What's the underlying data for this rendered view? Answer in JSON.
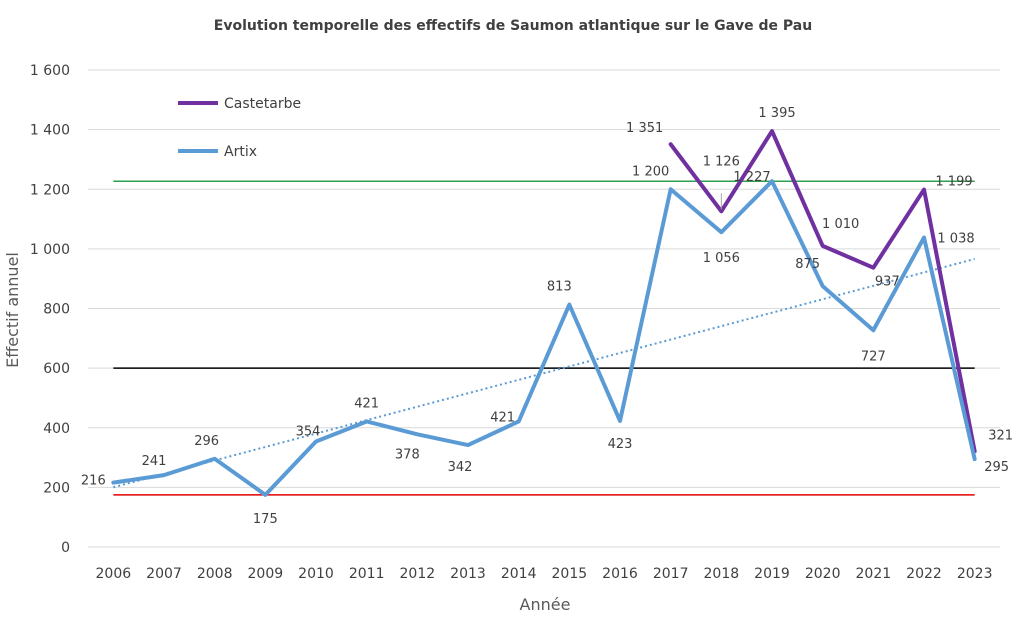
{
  "chart_data": {
    "type": "line",
    "title": "Evolution temporelle des effectifs de Saumon atlantique sur le Gave de Pau",
    "xlabel": "Année",
    "ylabel": "Effectif annuel",
    "ylim": [
      0,
      1600
    ],
    "yticks": [
      0,
      200,
      400,
      600,
      800,
      1000,
      1200,
      1400,
      1600
    ],
    "ytick_labels": [
      "0",
      "200",
      "400",
      "600",
      "800",
      "1 000",
      "1 200",
      "1 400",
      "1 600"
    ],
    "grid": true,
    "legend_position": "top-left",
    "categories": [
      "2006",
      "2007",
      "2008",
      "2009",
      "2010",
      "2011",
      "2012",
      "2013",
      "2014",
      "2015",
      "2016",
      "2017",
      "2018",
      "2019",
      "2020",
      "2021",
      "2022",
      "2023"
    ],
    "series": [
      {
        "name": "Castetarbe",
        "color": "#7030A0",
        "values": [
          null,
          null,
          null,
          null,
          null,
          null,
          null,
          null,
          null,
          null,
          null,
          1351,
          1126,
          1395,
          1010,
          937,
          1199,
          321
        ],
        "labels": [
          null,
          null,
          null,
          null,
          null,
          null,
          null,
          null,
          null,
          null,
          null,
          "1 351",
          "1 126",
          "1 395",
          "1 010",
          "937",
          "1 199",
          "321"
        ]
      },
      {
        "name": "Artix",
        "color": "#5B9BD5",
        "values": [
          216,
          241,
          296,
          175,
          354,
          421,
          378,
          342,
          421,
          813,
          423,
          1200,
          1056,
          1227,
          875,
          727,
          1038,
          295
        ],
        "labels": [
          "216",
          "241",
          "296",
          "175",
          "354",
          "421",
          "378",
          "342",
          "421",
          "813",
          "423",
          "1 200",
          "1 056",
          "1 227",
          "875",
          "727",
          "1 038",
          "295"
        ],
        "trendline": "linear"
      }
    ],
    "reference_lines": [
      {
        "value": 1227,
        "color": "#2E9E4F"
      },
      {
        "value": 600,
        "color": "#000000"
      },
      {
        "value": 175,
        "color": "#E00000"
      }
    ]
  }
}
